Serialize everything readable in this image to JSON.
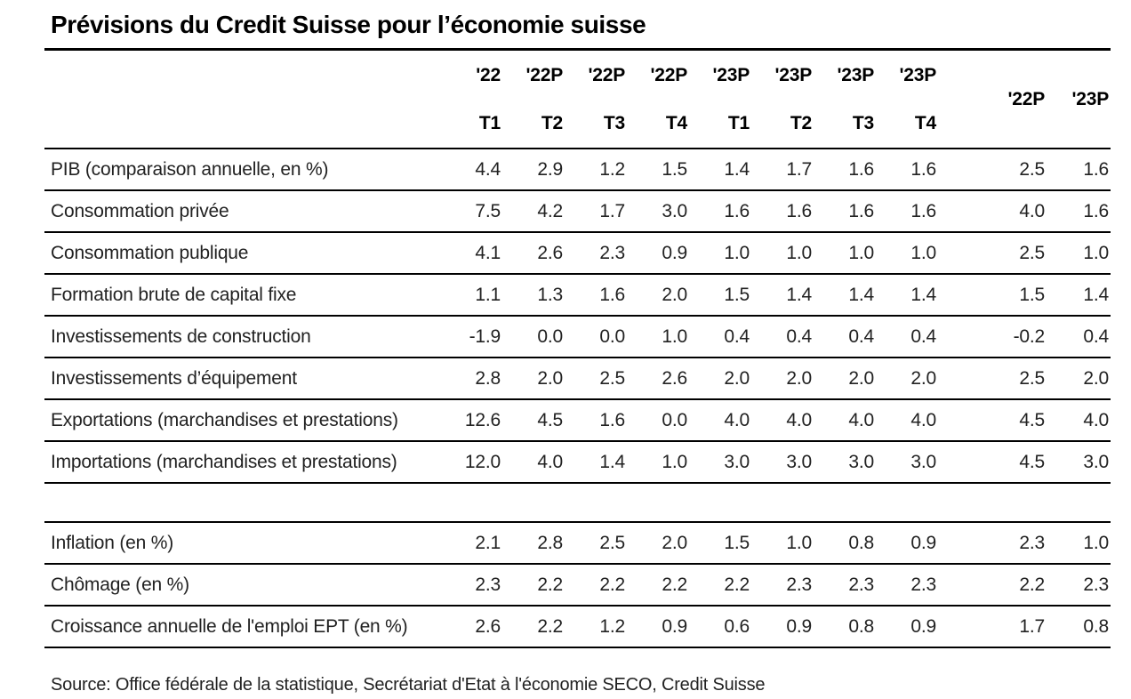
{
  "title": "Prévisions du Credit Suisse pour l’économie suisse",
  "table": {
    "header": {
      "year_labels": [
        "'22",
        "'22P",
        "'22P",
        "'22P",
        "'23P",
        "'23P",
        "'23P",
        "'23P"
      ],
      "quarter_labels": [
        "T1",
        "T2",
        "T3",
        "T4",
        "T1",
        "T2",
        "T3",
        "T4"
      ],
      "annual_labels": [
        "'22P",
        "'23P"
      ]
    },
    "rows": [
      {
        "label": "PIB (comparaison annuelle, en %)",
        "values": [
          "4.4",
          "2.9",
          "1.2",
          "1.5",
          "1.4",
          "1.7",
          "1.6",
          "1.6",
          "2.5",
          "1.6"
        ]
      },
      {
        "label": "Consommation privée",
        "values": [
          "7.5",
          "4.2",
          "1.7",
          "3.0",
          "1.6",
          "1.6",
          "1.6",
          "1.6",
          "4.0",
          "1.6"
        ]
      },
      {
        "label": "Consommation publique",
        "values": [
          "4.1",
          "2.6",
          "2.3",
          "0.9",
          "1.0",
          "1.0",
          "1.0",
          "1.0",
          "2.5",
          "1.0"
        ]
      },
      {
        "label": "Formation brute de capital fixe",
        "values": [
          "1.1",
          "1.3",
          "1.6",
          "2.0",
          "1.5",
          "1.4",
          "1.4",
          "1.4",
          "1.5",
          "1.4"
        ]
      },
      {
        "label": "Investissements de construction",
        "values": [
          "-1.9",
          "0.0",
          "0.0",
          "1.0",
          "0.4",
          "0.4",
          "0.4",
          "0.4",
          "-0.2",
          "0.4"
        ]
      },
      {
        "label": "Investissements d’équipement",
        "values": [
          "2.8",
          "2.0",
          "2.5",
          "2.6",
          "2.0",
          "2.0",
          "2.0",
          "2.0",
          "2.5",
          "2.0"
        ]
      },
      {
        "label": "Exportations (marchandises et prestations)",
        "values": [
          "12.6",
          "4.5",
          "1.6",
          "0.0",
          "4.0",
          "4.0",
          "4.0",
          "4.0",
          "4.5",
          "4.0"
        ]
      },
      {
        "label": "Importations (marchandises et prestations)",
        "values": [
          "12.0",
          "4.0",
          "1.4",
          "1.0",
          "3.0",
          "3.0",
          "3.0",
          "3.0",
          "4.5",
          "3.0"
        ]
      },
      {
        "label": "Inflation (en %)",
        "values": [
          "2.1",
          "2.8",
          "2.5",
          "2.0",
          "1.5",
          "1.0",
          "0.8",
          "0.9",
          "2.3",
          "1.0"
        ]
      },
      {
        "label": "Chômage (en %)",
        "values": [
          "2.3",
          "2.2",
          "2.2",
          "2.2",
          "2.2",
          "2.3",
          "2.3",
          "2.3",
          "2.2",
          "2.3"
        ]
      },
      {
        "label": "Croissance annuelle de l'emploi EPT (en %)",
        "values": [
          "2.6",
          "2.2",
          "1.2",
          "0.9",
          "0.6",
          "0.9",
          "0.8",
          "0.9",
          "1.7",
          "0.8"
        ]
      }
    ]
  },
  "source": "Source: Office fédérale de la statistique, Secrétariat d'Etat à l'économie SECO, Credit Suisse"
}
